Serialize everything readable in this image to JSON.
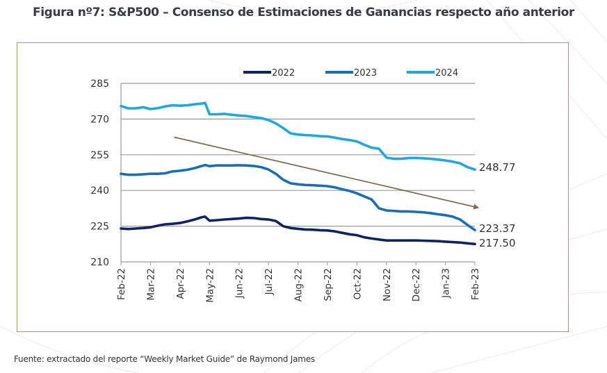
{
  "figure": {
    "title": "Figura nº7: S&P500 – Consenso de Estimaciones de Ganancias respecto año anterior",
    "source": "Fuente: extractado del reporte “Weekly Market Guide” de Raymond James"
  },
  "chart_data": {
    "type": "line",
    "title": "Figura nº7: S&P500 – Consenso de Estimaciones de Ganancias respecto año anterior",
    "xlabel": "",
    "ylabel": "",
    "ylim": [
      210,
      285
    ],
    "yticks": [
      210,
      225,
      240,
      255,
      270,
      285
    ],
    "grid": "horizontal",
    "legend_position": "top",
    "categories": [
      "Feb-22",
      "Mar-22",
      "Apr-22",
      "May-22",
      "Jun-22",
      "Jul-22",
      "Aug-22",
      "Sep-22",
      "Oct-22",
      "Nov-22",
      "Dec-22",
      "Jan-23",
      "Feb-23"
    ],
    "x": [
      0,
      0.25,
      0.5,
      0.75,
      1,
      1.25,
      1.5,
      1.75,
      2,
      2.25,
      2.5,
      2.75,
      2.85,
      3,
      3.25,
      3.5,
      3.75,
      4,
      4.25,
      4.5,
      4.75,
      5,
      5.25,
      5.5,
      5.75,
      6,
      6.25,
      6.5,
      6.75,
      7,
      7.25,
      7.5,
      7.75,
      8,
      8.25,
      8.5,
      8.75,
      9,
      9.25,
      9.5,
      9.75,
      10,
      10.25,
      10.5,
      10.75,
      11,
      11.25,
      11.5,
      11.75,
      12
    ],
    "series": [
      {
        "name": "2022",
        "color": "#0e2366",
        "values": [
          224,
          223.8,
          224,
          224.2,
          224.5,
          225.2,
          225.8,
          226,
          226.3,
          227,
          227.8,
          228.8,
          229,
          227.3,
          227.5,
          227.8,
          228,
          228.2,
          228.5,
          228.4,
          228,
          227.8,
          227.2,
          225,
          224.2,
          223.9,
          223.6,
          223.5,
          223.3,
          223.2,
          222.8,
          222.2,
          221.6,
          221.2,
          220.3,
          219.8,
          219.4,
          219,
          219,
          219,
          219,
          219,
          218.9,
          218.8,
          218.7,
          218.5,
          218.3,
          218.1,
          217.8,
          217.5
        ]
      },
      {
        "name": "2023",
        "color": "#1b6db5",
        "values": [
          247,
          246.6,
          246.6,
          246.8,
          247,
          247,
          247.2,
          248,
          248.3,
          248.7,
          249.4,
          250.3,
          250.7,
          250.2,
          250.5,
          250.5,
          250.5,
          250.6,
          250.5,
          250.3,
          249.8,
          248.8,
          247,
          244.5,
          243,
          242.6,
          242.3,
          242.2,
          242,
          241.8,
          241.3,
          240.5,
          239.8,
          238.8,
          237.5,
          236.2,
          232.5,
          231.6,
          231.4,
          231.2,
          231.2,
          231,
          230.8,
          230.5,
          230,
          229.6,
          229,
          227.8,
          225.5,
          223.37
        ]
      },
      {
        "name": "2024",
        "color": "#1fa8e0",
        "values": [
          275.5,
          274.5,
          274.5,
          275,
          274.2,
          274.6,
          275.3,
          275.8,
          275.6,
          275.8,
          276.2,
          276.5,
          276.8,
          272,
          272,
          272.2,
          271.8,
          271.5,
          271.3,
          270.8,
          270.4,
          269.6,
          268.2,
          266.2,
          264,
          263.5,
          263.3,
          263.1,
          262.8,
          262.7,
          262.2,
          261.6,
          261.2,
          260.6,
          259.2,
          258,
          257.5,
          253.8,
          253.3,
          253.3,
          253.6,
          253.7,
          253.5,
          253.3,
          253,
          252.6,
          252.1,
          251.4,
          249.8,
          248.77
        ]
      }
    ],
    "end_labels": [
      "248.77",
      "223.37",
      "217.50"
    ],
    "annotations": [
      {
        "type": "trend-arrow",
        "color": "#7d6e52",
        "from": {
          "x": 1.8,
          "y": 262.4
        },
        "to": {
          "x": 12.1,
          "y": 232.8
        },
        "description": "downward trend arrow"
      }
    ]
  }
}
